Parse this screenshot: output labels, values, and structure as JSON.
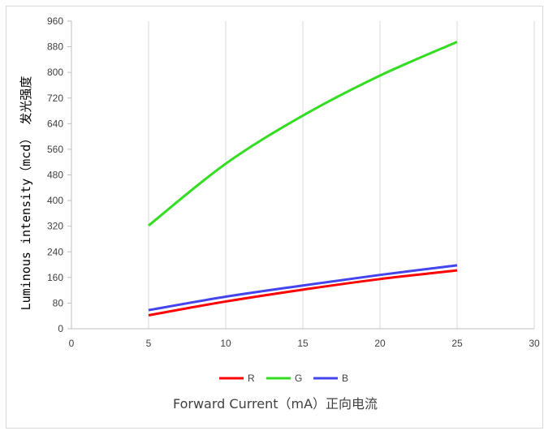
{
  "chart_data": {
    "type": "line",
    "xlabel": "Forward Current（mA）正向电流",
    "ylabel": "Luminous intensity（mcd） 发光强度",
    "xlim": [
      0,
      30
    ],
    "ylim": [
      0,
      960
    ],
    "xticks": [
      0,
      5,
      10,
      15,
      20,
      25,
      30
    ],
    "yticks": [
      0,
      80,
      160,
      240,
      320,
      400,
      480,
      560,
      640,
      720,
      800,
      880,
      960
    ],
    "grid": "vertical",
    "legend_position": "bottom",
    "x": [
      5,
      10,
      15,
      20,
      25
    ],
    "series": [
      {
        "name": "R",
        "color": "#ff0000",
        "values": [
          42,
          85,
          122,
          155,
          182
        ]
      },
      {
        "name": "G",
        "color": "#33dd22",
        "values": [
          322,
          515,
          665,
          790,
          895
        ]
      },
      {
        "name": "B",
        "color": "#4444ee",
        "values": [
          58,
          100,
          135,
          168,
          198
        ]
      }
    ]
  }
}
